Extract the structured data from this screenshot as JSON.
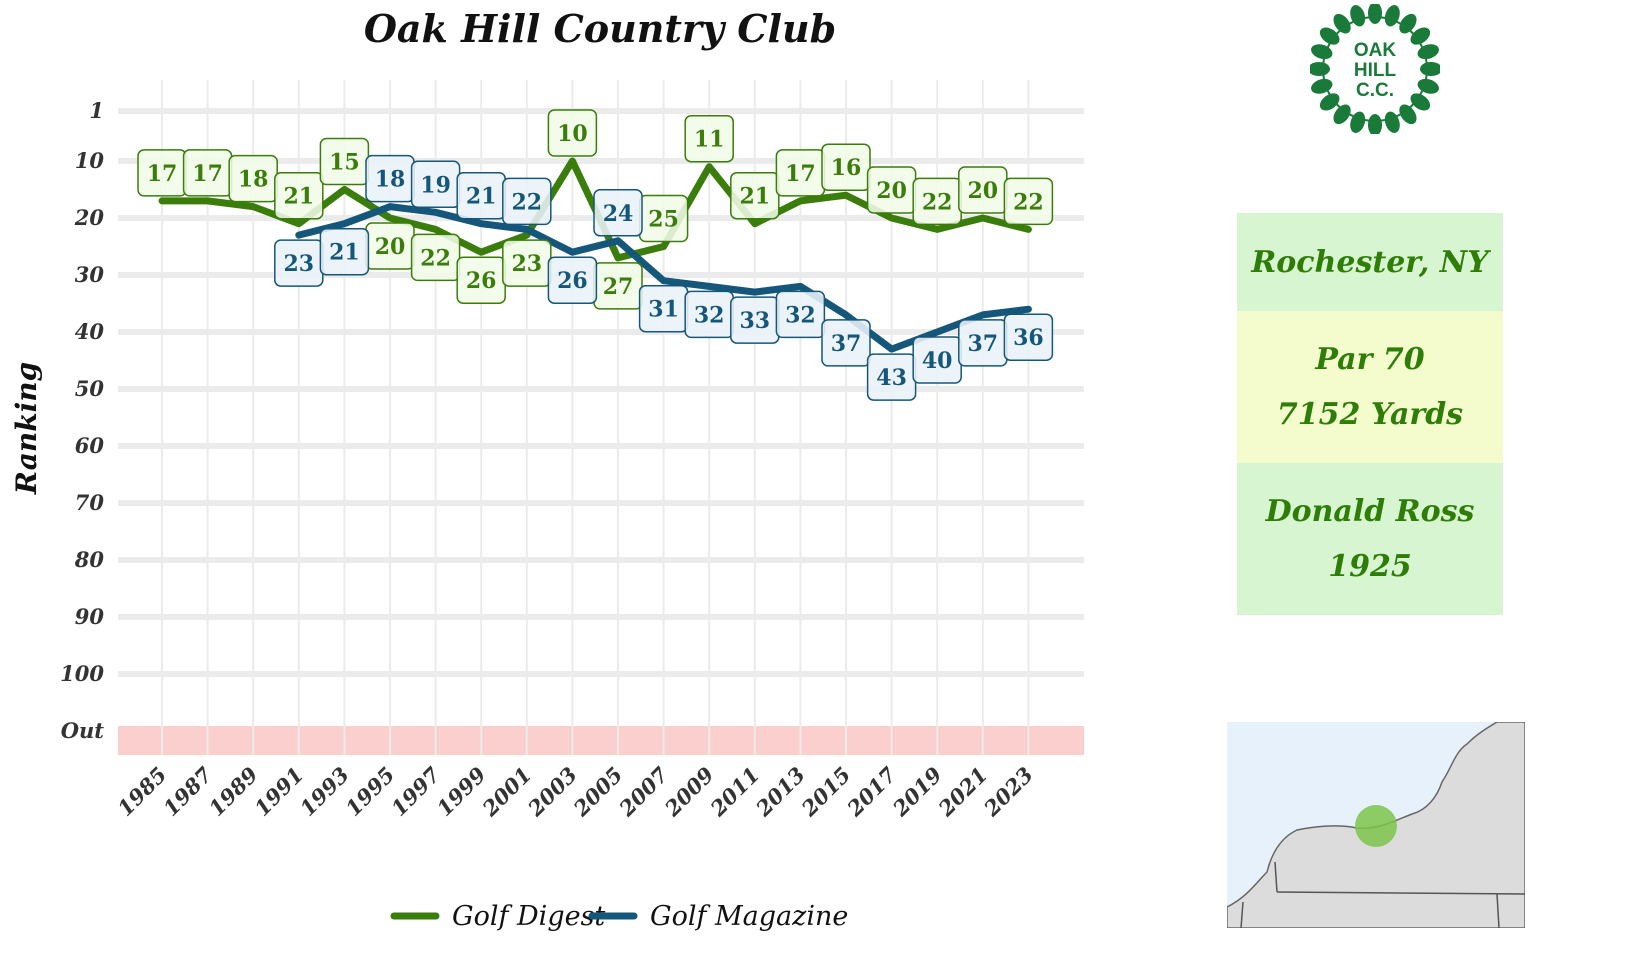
{
  "chart_data": {
    "type": "line",
    "title": "Oak Hill Country Club",
    "xlabel": "",
    "ylabel": "Ranking",
    "x": [
      1985,
      1987,
      1989,
      1991,
      1993,
      1995,
      1997,
      1999,
      2001,
      2003,
      2005,
      2007,
      2009,
      2011,
      2013,
      2015,
      2017,
      2019,
      2021,
      2023
    ],
    "x_tick_labels": [
      "1985",
      "1987",
      "1989",
      "1991",
      "1993",
      "1995",
      "1997",
      "1999",
      "2001",
      "2003",
      "2005",
      "2007",
      "2009",
      "2011",
      "2013",
      "2015",
      "2017",
      "2019",
      "2021",
      "2023"
    ],
    "y_tick_labels": [
      "1",
      "10",
      "20",
      "30",
      "40",
      "50",
      "60",
      "70",
      "80",
      "90",
      "100",
      "Out"
    ],
    "y_ticks": [
      1,
      10,
      20,
      30,
      40,
      50,
      60,
      70,
      80,
      90,
      100,
      110
    ],
    "y_reversed": true,
    "ylim": [
      1,
      110
    ],
    "out_band_label": "Out",
    "grid": true,
    "legend_position": "bottom",
    "series": [
      {
        "name": "Golf Digest",
        "color": "#3a7d0a",
        "label_box_fill": "#f1fae8",
        "values": [
          17,
          17,
          18,
          21,
          15,
          20,
          22,
          26,
          23,
          10,
          27,
          25,
          11,
          21,
          17,
          16,
          20,
          22,
          20,
          22
        ],
        "label_side": [
          "up",
          "up",
          "up",
          "up",
          "up",
          "down",
          "down",
          "down",
          "down",
          "up",
          "down",
          "up",
          "up",
          "up",
          "up",
          "up",
          "up",
          "up",
          "up",
          "up"
        ]
      },
      {
        "name": "Golf Magazine",
        "color": "#15577a",
        "label_box_fill": "#eaf3f8",
        "values": [
          null,
          null,
          null,
          23,
          21,
          18,
          19,
          21,
          22,
          26,
          24,
          31,
          32,
          33,
          32,
          37,
          43,
          40,
          37,
          36
        ],
        "label_side": [
          null,
          null,
          null,
          "down",
          "down",
          "up",
          "up",
          "up",
          "up",
          "down",
          "up",
          "down",
          "down",
          "down",
          "down",
          "down",
          "down",
          "down",
          "down",
          "down"
        ]
      }
    ],
    "colors": {
      "out_band": "#fccfcf",
      "grid": "#ebebeb"
    }
  },
  "info": {
    "location": "Rochester, NY",
    "par": "Par 70",
    "yards": "7152 Yards",
    "architect": "Donald Ross",
    "year": "1925",
    "colors": {
      "location_bg": "#d7f5d1",
      "par_bg": "#f4fccd",
      "architect_bg": "#d7f5d1",
      "text": "#2e7d06"
    }
  },
  "logo": {
    "text_line1": "OAK",
    "text_line2": "HILL",
    "text_line3": "C.C.",
    "icon": "oak-leaf-wreath-icon",
    "color": "#1a7a3a"
  },
  "map": {
    "icon": "region-map-icon",
    "marker_color": "#7cc44a",
    "land_color": "#dcdcdc",
    "water_color": "#e6f1fb"
  }
}
